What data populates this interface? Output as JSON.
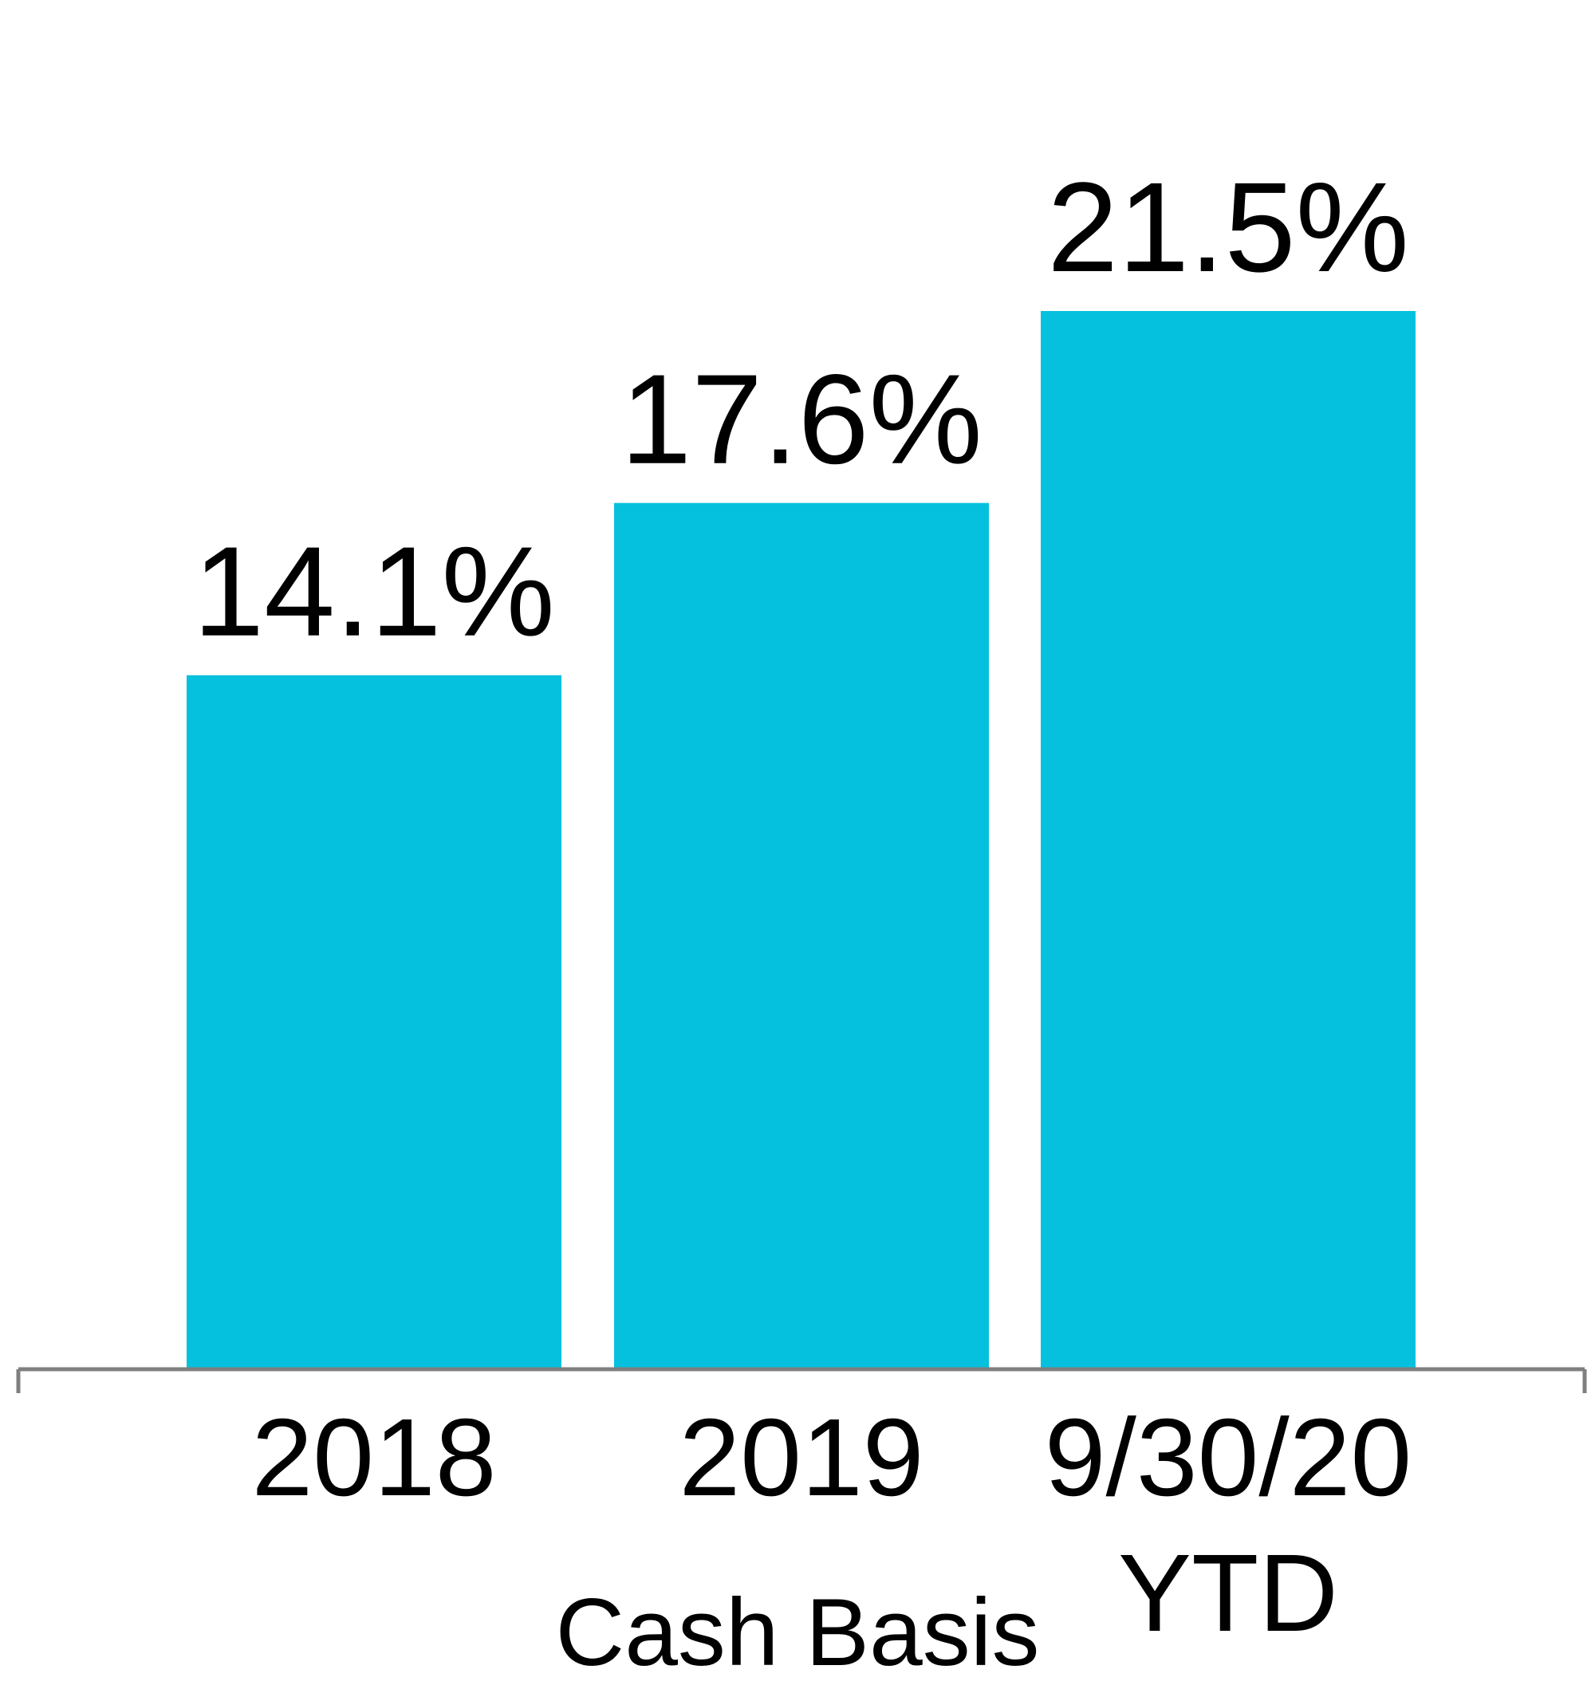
{
  "chart_data": {
    "type": "bar",
    "title": "",
    "xlabel": "Cash Basis",
    "ylabel": "",
    "categories": [
      [
        "2018"
      ],
      [
        "2019"
      ],
      [
        "9/30/20",
        "YTD"
      ]
    ],
    "series": [
      {
        "values": [
          14.1,
          17.6,
          21.5
        ],
        "labels": [
          "14.1%",
          "17.6%",
          "21.5%"
        ],
        "color": "#06C1DE"
      }
    ],
    "ylim": [
      0,
      21.5
    ],
    "grid": false,
    "legend": "none",
    "axis_color": "#7f7f7f"
  }
}
